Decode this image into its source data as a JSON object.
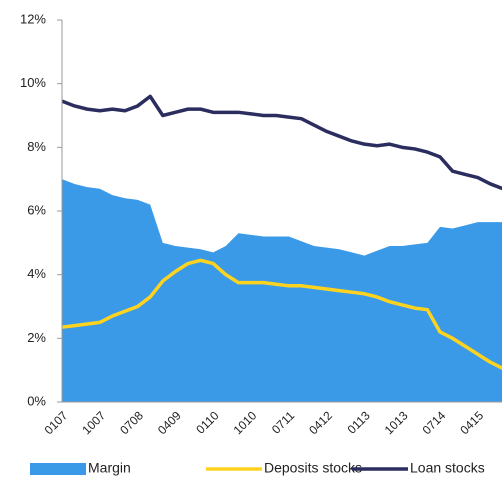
{
  "chart_data": {
    "type": "line",
    "categories": [
      "0107",
      null,
      null,
      "1007",
      null,
      null,
      "0708",
      null,
      null,
      "0409",
      null,
      null,
      "0110",
      null,
      null,
      "1010",
      null,
      null,
      "0711",
      null,
      null,
      "0412",
      null,
      null,
      "0113",
      null,
      null,
      "1013",
      null,
      null,
      "0714",
      null,
      null,
      "0415",
      null,
      null
    ],
    "series": [
      {
        "name": "Margin",
        "color": "#3a9ae8",
        "fill": true,
        "values": [
          7.0,
          6.85,
          6.75,
          6.7,
          6.5,
          6.4,
          6.35,
          6.2,
          5.0,
          4.9,
          4.85,
          4.8,
          4.7,
          4.9,
          5.3,
          5.25,
          5.2,
          5.2,
          5.2,
          5.05,
          4.9,
          4.85,
          4.8,
          4.7,
          4.6,
          4.75,
          4.9,
          4.9,
          4.95,
          5.0,
          5.5,
          5.45,
          5.55,
          5.65,
          5.65,
          5.65
        ]
      },
      {
        "name": "Deposits stocks",
        "color": "#fdd31f",
        "values": [
          2.35,
          2.4,
          2.45,
          2.5,
          2.7,
          2.85,
          3.0,
          3.3,
          3.8,
          4.1,
          4.35,
          4.45,
          4.35,
          4.0,
          3.75,
          3.75,
          3.75,
          3.7,
          3.65,
          3.65,
          3.6,
          3.55,
          3.5,
          3.45,
          3.4,
          3.3,
          3.15,
          3.05,
          2.95,
          2.9,
          2.2,
          2.0,
          1.75,
          1.5,
          1.25,
          1.05
        ]
      },
      {
        "name": "Loan stocks",
        "color": "#2b2d5e",
        "values": [
          9.45,
          9.3,
          9.2,
          9.15,
          9.2,
          9.15,
          9.3,
          9.6,
          9.0,
          9.1,
          9.2,
          9.2,
          9.1,
          9.1,
          9.1,
          9.05,
          9.0,
          9.0,
          8.95,
          8.9,
          8.7,
          8.5,
          8.35,
          8.2,
          8.1,
          8.05,
          8.1,
          8.0,
          7.95,
          7.85,
          7.7,
          7.25,
          7.15,
          7.05,
          6.85,
          6.7
        ]
      }
    ],
    "ylim": [
      0,
      12
    ],
    "yticks": [
      {
        "value": 0,
        "label": "0%"
      },
      {
        "value": 2,
        "label": "2%"
      },
      {
        "value": 4,
        "label": "4%"
      },
      {
        "value": 6,
        "label": "6%"
      },
      {
        "value": 8,
        "label": "8%"
      },
      {
        "value": 10,
        "label": "10%"
      },
      {
        "value": 12,
        "label": "12%"
      }
    ],
    "legend": "bottom"
  }
}
